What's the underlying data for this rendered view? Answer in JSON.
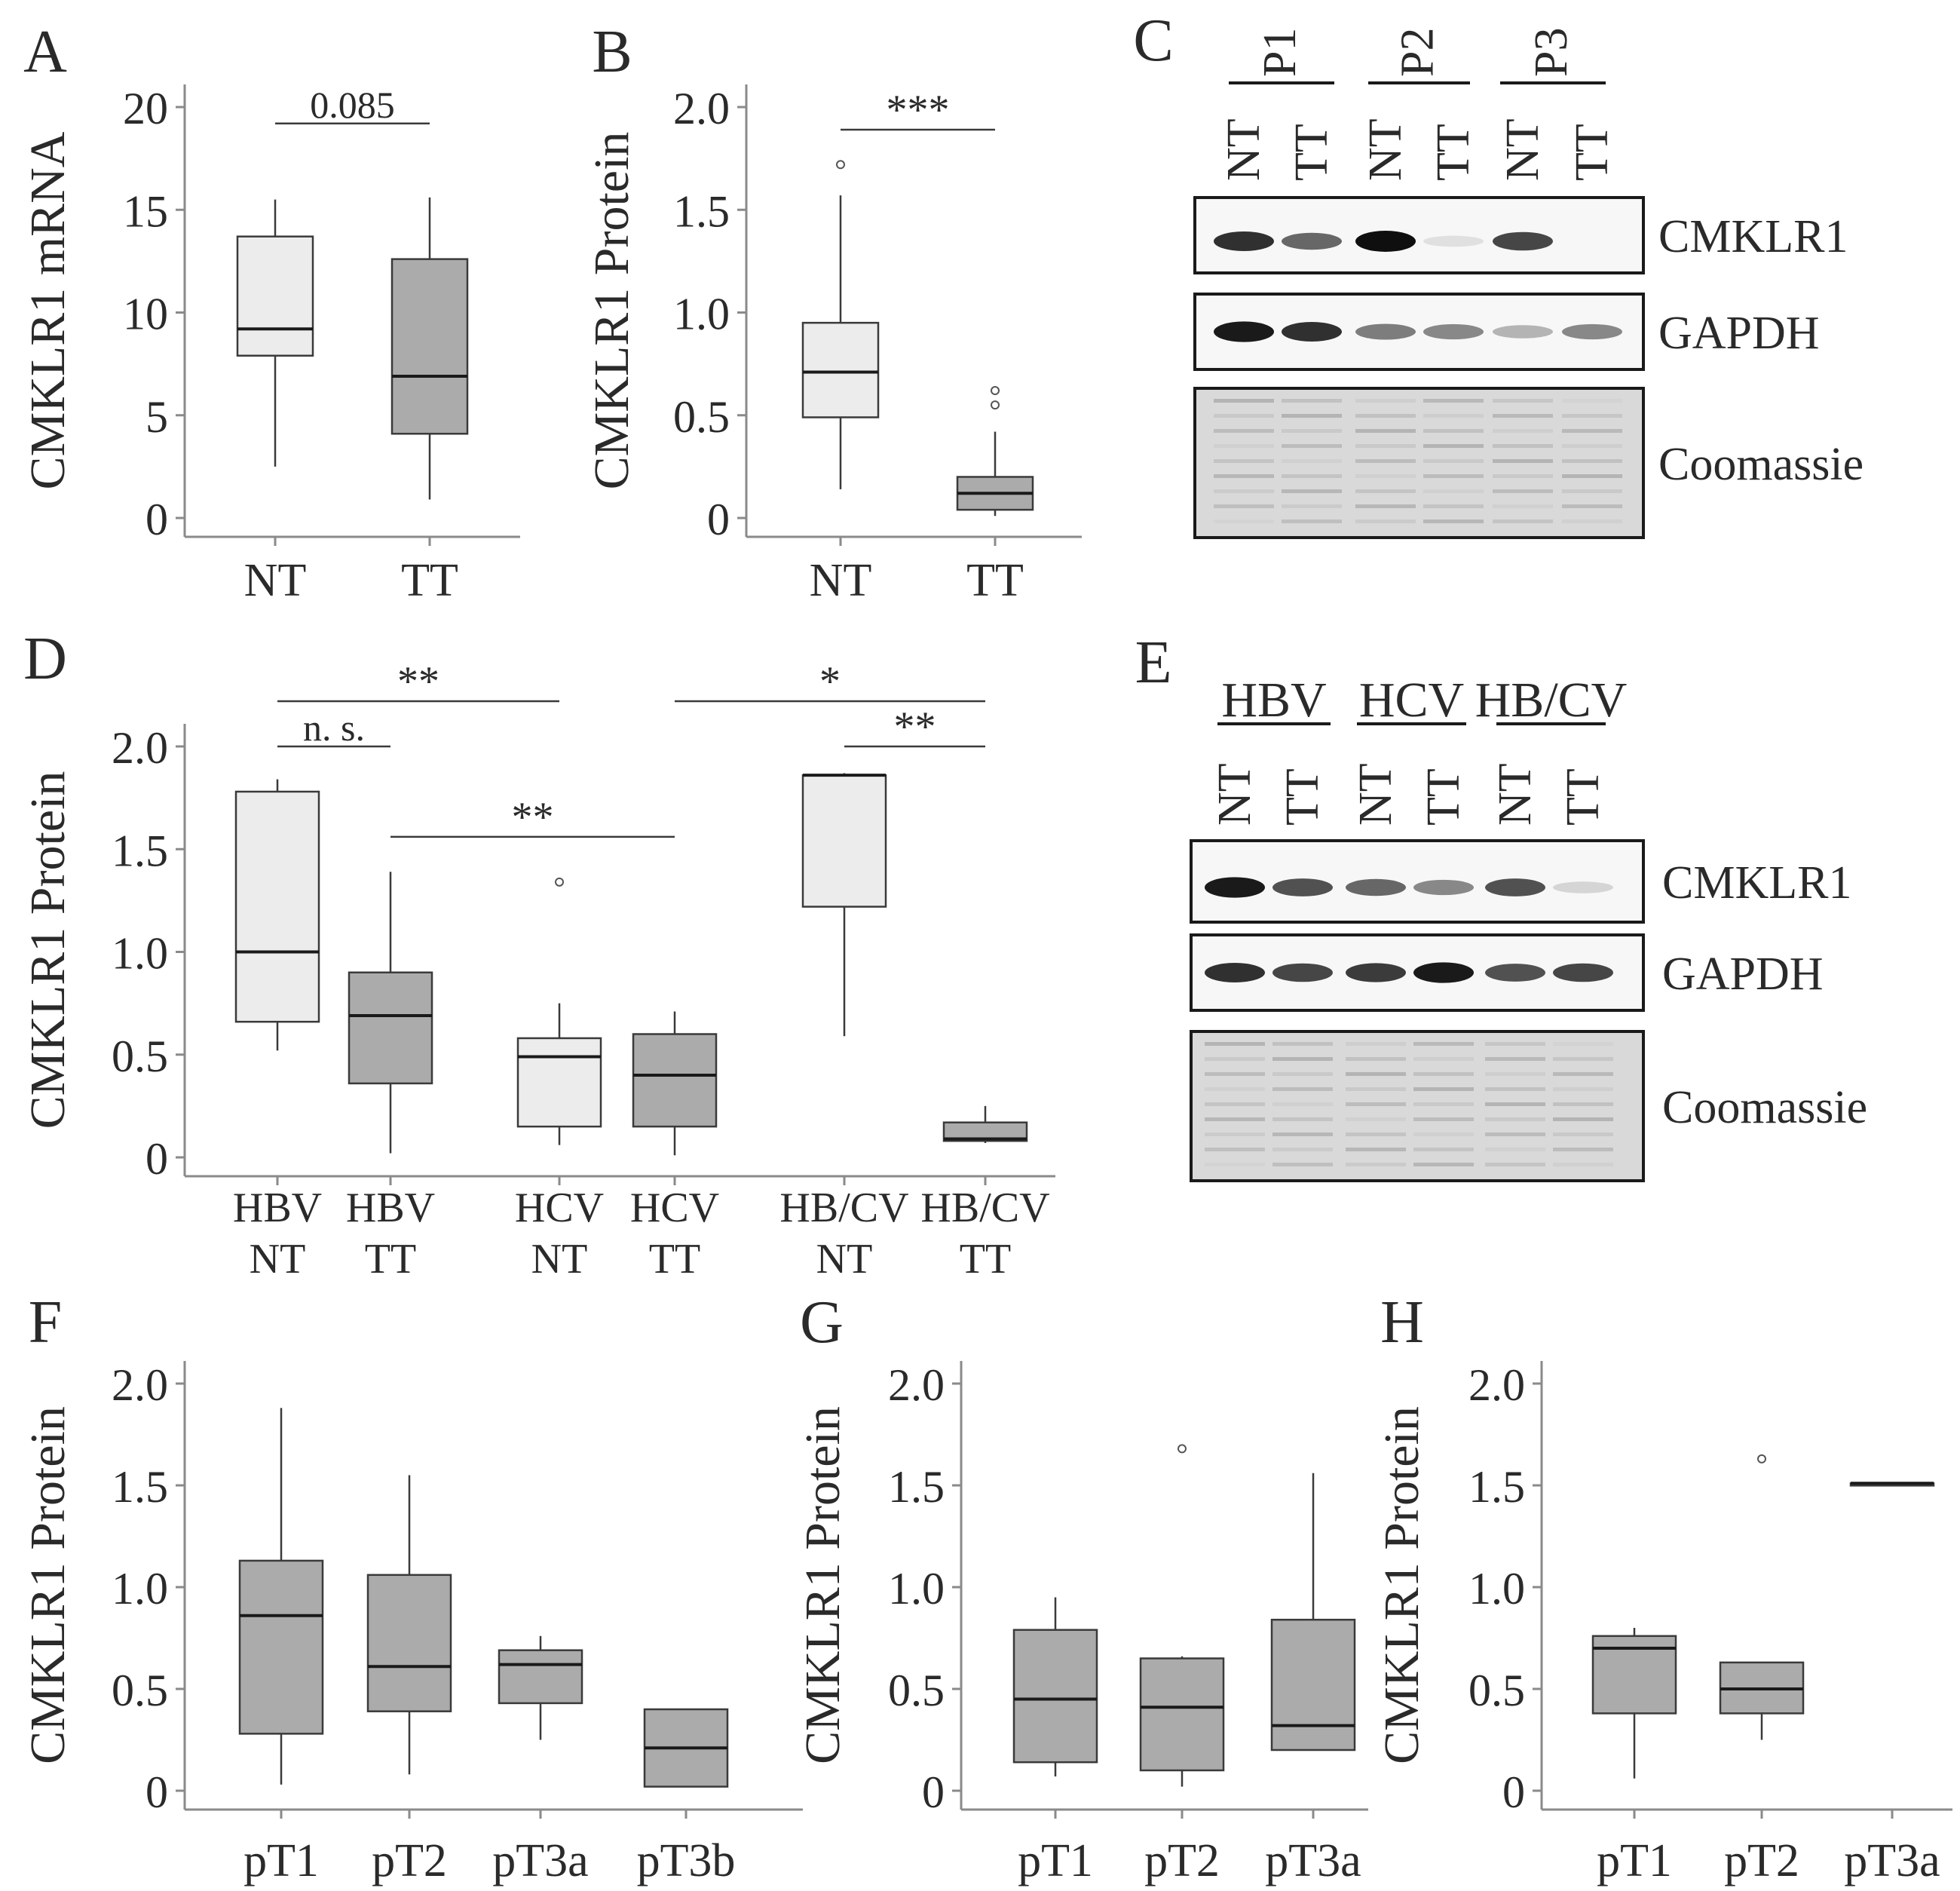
{
  "colors": {
    "nt_fill": "#ececec",
    "tt_fill": "#ababab",
    "line": "#3a3a3a"
  },
  "chart_data": [
    {
      "panel": "A",
      "type": "box",
      "ylabel": "CMKLR1 mRNA",
      "categories": [
        "NT",
        "TT"
      ],
      "yticks": [
        "0",
        "5",
        "10",
        "15",
        "20"
      ],
      "ylim": [
        0,
        20
      ],
      "boxes": [
        {
          "min": 2.5,
          "q1": 7.9,
          "median": 9.2,
          "q3": 13.7,
          "max": 15.5,
          "fill": "nt",
          "outliers": []
        },
        {
          "min": 0.9,
          "q1": 4.1,
          "median": 6.9,
          "q3": 12.6,
          "max": 15.6,
          "fill": "tt",
          "outliers": []
        }
      ],
      "brackets": [
        {
          "from": 0,
          "to": 1,
          "label": "0.085",
          "y": 19.2
        }
      ]
    },
    {
      "panel": "B",
      "type": "box",
      "ylabel": "CMKLR1 Protein",
      "categories": [
        "NT",
        "TT"
      ],
      "yticks": [
        "0",
        "0.5",
        "1.0",
        "1.5",
        "2.0"
      ],
      "ylim": [
        0,
        2.0
      ],
      "boxes": [
        {
          "min": 0.14,
          "q1": 0.49,
          "median": 0.71,
          "q3": 0.95,
          "max": 1.57,
          "fill": "nt",
          "outliers": [
            1.72
          ]
        },
        {
          "min": 0.01,
          "q1": 0.04,
          "median": 0.12,
          "q3": 0.2,
          "max": 0.42,
          "fill": "tt",
          "outliers": [
            0.55,
            0.62
          ]
        }
      ],
      "brackets": [
        {
          "from": 0,
          "to": 1,
          "label": "***",
          "y": 1.89
        }
      ]
    },
    {
      "panel": "D",
      "type": "box",
      "ylabel": "CMKLR1 Protein",
      "categories": [
        "HBV NT",
        "HBV TT",
        "HCV NT",
        "HCV TT",
        "HB/CV NT",
        "HB/CV TT"
      ],
      "category_lines": [
        [
          "HBV",
          "NT"
        ],
        [
          "HBV",
          "TT"
        ],
        [
          "HCV",
          "NT"
        ],
        [
          "HCV",
          "TT"
        ],
        [
          "HB/CV",
          "NT"
        ],
        [
          "HB/CV",
          "TT"
        ]
      ],
      "yticks": [
        "0",
        "0.5",
        "1.0",
        "1.5",
        "2.0"
      ],
      "ylim": [
        0,
        2.0
      ],
      "boxes": [
        {
          "min": 0.52,
          "q1": 0.66,
          "median": 1.0,
          "q3": 1.78,
          "max": 1.84,
          "fill": "nt",
          "outliers": []
        },
        {
          "min": 0.02,
          "q1": 0.36,
          "median": 0.69,
          "q3": 0.9,
          "max": 1.39,
          "fill": "tt",
          "outliers": []
        },
        {
          "min": 0.06,
          "q1": 0.15,
          "median": 0.49,
          "q3": 0.58,
          "max": 0.75,
          "fill": "nt",
          "outliers": [
            1.34
          ]
        },
        {
          "min": 0.01,
          "q1": 0.15,
          "median": 0.4,
          "q3": 0.6,
          "max": 0.71,
          "fill": "tt",
          "outliers": []
        },
        {
          "min": 0.59,
          "q1": 1.22,
          "median": 1.86,
          "q3": 1.86,
          "max": 1.87,
          "fill": "nt",
          "outliers": []
        },
        {
          "min": 0.07,
          "q1": 0.08,
          "median": 0.09,
          "q3": 0.17,
          "max": 0.25,
          "fill": "tt",
          "outliers": []
        }
      ],
      "brackets": [
        {
          "from": 0,
          "to": 2,
          "label": "**",
          "y": 2.22
        },
        {
          "from": 0,
          "to": 1,
          "label": "n. s.",
          "y": 2.0
        },
        {
          "from": 1,
          "to": 3,
          "label": "**",
          "y": 1.56
        },
        {
          "from": 3,
          "to": 5,
          "label": "*",
          "y": 2.22
        },
        {
          "from": 4,
          "to": 5,
          "label": "**",
          "y": 2.0
        }
      ]
    },
    {
      "panel": "F",
      "type": "box",
      "ylabel": "CMKLR1 Protein",
      "categories": [
        "pT1",
        "pT2",
        "pT3a",
        "pT3b"
      ],
      "yticks": [
        "0",
        "0.5",
        "1.0",
        "1.5",
        "2.0"
      ],
      "ylim": [
        0,
        2.0
      ],
      "boxes": [
        {
          "min": 0.03,
          "q1": 0.28,
          "median": 0.86,
          "q3": 1.13,
          "max": 1.88,
          "fill": "tt",
          "outliers": []
        },
        {
          "min": 0.08,
          "q1": 0.39,
          "median": 0.61,
          "q3": 1.06,
          "max": 1.55,
          "fill": "tt",
          "outliers": []
        },
        {
          "min": 0.25,
          "q1": 0.43,
          "median": 0.62,
          "q3": 0.69,
          "max": 0.76,
          "fill": "tt",
          "outliers": []
        },
        {
          "min": 0.02,
          "q1": 0.02,
          "median": 0.21,
          "q3": 0.4,
          "max": 0.4,
          "fill": "tt",
          "outliers": []
        }
      ],
      "brackets": []
    },
    {
      "panel": "G",
      "type": "box",
      "ylabel": "CMKLR1 Protein",
      "categories": [
        "pT1",
        "pT2",
        "pT3a"
      ],
      "yticks": [
        "0",
        "0.5",
        "1.0",
        "1.5",
        "2.0"
      ],
      "ylim": [
        0,
        2.0
      ],
      "boxes": [
        {
          "min": 0.07,
          "q1": 0.14,
          "median": 0.45,
          "q3": 0.79,
          "max": 0.95,
          "fill": "tt",
          "outliers": []
        },
        {
          "min": 0.02,
          "q1": 0.1,
          "median": 0.41,
          "q3": 0.65,
          "max": 0.66,
          "fill": "tt",
          "outliers": [
            1.68
          ]
        },
        {
          "min": 0.2,
          "q1": 0.2,
          "median": 0.32,
          "q3": 0.84,
          "max": 1.56,
          "fill": "tt",
          "outliers": []
        }
      ],
      "brackets": []
    },
    {
      "panel": "H",
      "type": "box",
      "ylabel": "CMKLR1 Protein",
      "categories": [
        "pT1",
        "pT2",
        "pT3a"
      ],
      "yticks": [
        "0",
        "0.5",
        "1.0",
        "1.5",
        "2.0"
      ],
      "ylim": [
        0,
        2.0
      ],
      "boxes": [
        {
          "min": 0.06,
          "q1": 0.38,
          "median": 0.7,
          "q3": 0.76,
          "max": 0.8,
          "fill": "tt",
          "outliers": []
        },
        {
          "min": 0.25,
          "q1": 0.38,
          "median": 0.5,
          "q3": 0.63,
          "max": 0.63,
          "fill": "tt",
          "outliers": [
            1.63
          ]
        },
        {
          "min": 1.51,
          "q1": 1.51,
          "median": 1.51,
          "q3": 1.51,
          "max": 1.51,
          "fill": "tt",
          "outliers": []
        }
      ],
      "brackets": []
    }
  ],
  "blots": [
    {
      "panel": "C",
      "groups": [
        "P1",
        "P2",
        "P3"
      ],
      "lanes": [
        "NT",
        "TT",
        "NT",
        "TT",
        "NT",
        "TT"
      ],
      "rows": [
        "CMKLR1",
        "GAPDH",
        "Coomassie"
      ],
      "band_intensity": {
        "CMKLR1": [
          0.85,
          0.6,
          1.0,
          0.05,
          0.75,
          0.03
        ],
        "GAPDH": [
          0.95,
          0.85,
          0.5,
          0.45,
          0.25,
          0.45
        ]
      }
    },
    {
      "panel": "E",
      "groups": [
        "HBV",
        "HCV",
        "HB/CV"
      ],
      "lanes": [
        "NT",
        "TT",
        "NT",
        "TT",
        "NT",
        "TT"
      ],
      "rows": [
        "CMKLR1",
        "GAPDH",
        "Coomassie"
      ],
      "band_intensity": {
        "CMKLR1": [
          0.95,
          0.7,
          0.6,
          0.45,
          0.7,
          0.1
        ],
        "GAPDH": [
          0.85,
          0.75,
          0.8,
          0.95,
          0.7,
          0.75
        ]
      }
    }
  ]
}
